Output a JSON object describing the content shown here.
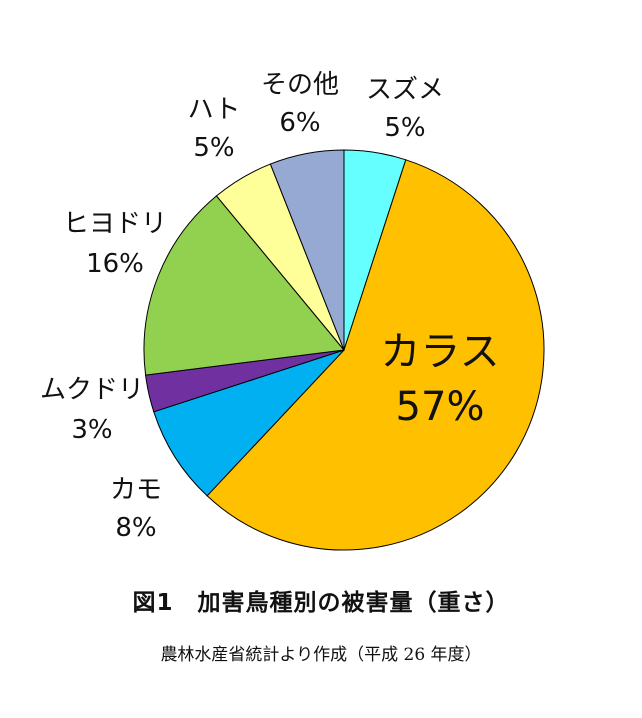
{
  "chart_data": {
    "type": "pie",
    "title": "図1　加害鳥種別の被害量（重さ）",
    "source": "農林水産省統計より作成（平成 26 年度）",
    "slices": [
      {
        "label": "スズメ",
        "value": 5,
        "value_label": "5%",
        "color": "#66FFFF"
      },
      {
        "label": "カラス",
        "value": 57,
        "value_label": "57%",
        "color": "#FFC000"
      },
      {
        "label": "カモ",
        "value": 8,
        "value_label": "8%",
        "color": "#00B0F0"
      },
      {
        "label": "ムクドリ",
        "value": 3,
        "value_label": "3%",
        "color": "#7030A0"
      },
      {
        "label": "ヒヨドリ",
        "value": 16,
        "value_label": "16%",
        "color": "#92D050"
      },
      {
        "label": "ハト",
        "value": 5,
        "value_label": "5%",
        "color": "#FFFF99"
      },
      {
        "label": "その他",
        "value": 6,
        "value_label": "6%",
        "color": "#95A9D2"
      }
    ],
    "start_angle": "12 o'clock",
    "direction": "clockwise",
    "legend": "none"
  }
}
